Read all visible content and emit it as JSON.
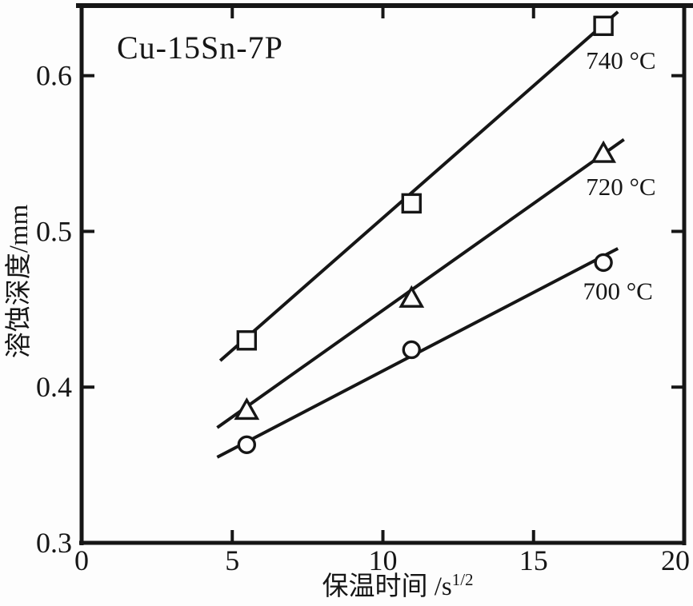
{
  "chart_data": {
    "type": "line",
    "title": "Cu-15Sn-7P",
    "xlabel_base": "保温时间 /s",
    "xlabel_sup": "1/2",
    "xlabel": "保温时间 /s^(1/2)",
    "ylabel": "溶蚀深度/mm",
    "xlim": [
      0,
      20
    ],
    "ylim": [
      0.3,
      0.645
    ],
    "grid": false,
    "legend": "inline-labels-right-of-lines",
    "x_ticks": {
      "values": [
        0,
        5,
        10,
        15,
        20
      ],
      "labels": [
        "0",
        "5",
        "10",
        "15",
        "20"
      ]
    },
    "y_ticks": {
      "values": [
        0.3,
        0.4,
        0.5,
        0.6
      ],
      "labels": [
        "0.3",
        "0.4",
        "0.5",
        "0.6"
      ]
    },
    "x": [
      5.48,
      10.95,
      17.32
    ],
    "series": [
      {
        "name": "740 °C",
        "marker": "square",
        "values": [
          0.43,
          0.518,
          0.632
        ],
        "trend_line": [
          [
            4.6,
            0.417
          ],
          [
            17.8,
            0.641
          ]
        ],
        "label_pos": [
          17.9,
          0.61
        ]
      },
      {
        "name": "720 °C",
        "marker": "triangle",
        "values": [
          0.385,
          0.457,
          0.55
        ],
        "trend_line": [
          [
            4.5,
            0.374
          ],
          [
            18.0,
            0.559
          ]
        ],
        "label_pos": [
          17.9,
          0.529
        ]
      },
      {
        "name": "700 °C",
        "marker": "circle",
        "values": [
          0.363,
          0.424,
          0.48
        ],
        "trend_line": [
          [
            4.5,
            0.355
          ],
          [
            17.8,
            0.489
          ]
        ],
        "label_pos": [
          17.8,
          0.462
        ]
      }
    ],
    "colors": {
      "ink": "#161616",
      "background": "#fdfdfd"
    }
  }
}
